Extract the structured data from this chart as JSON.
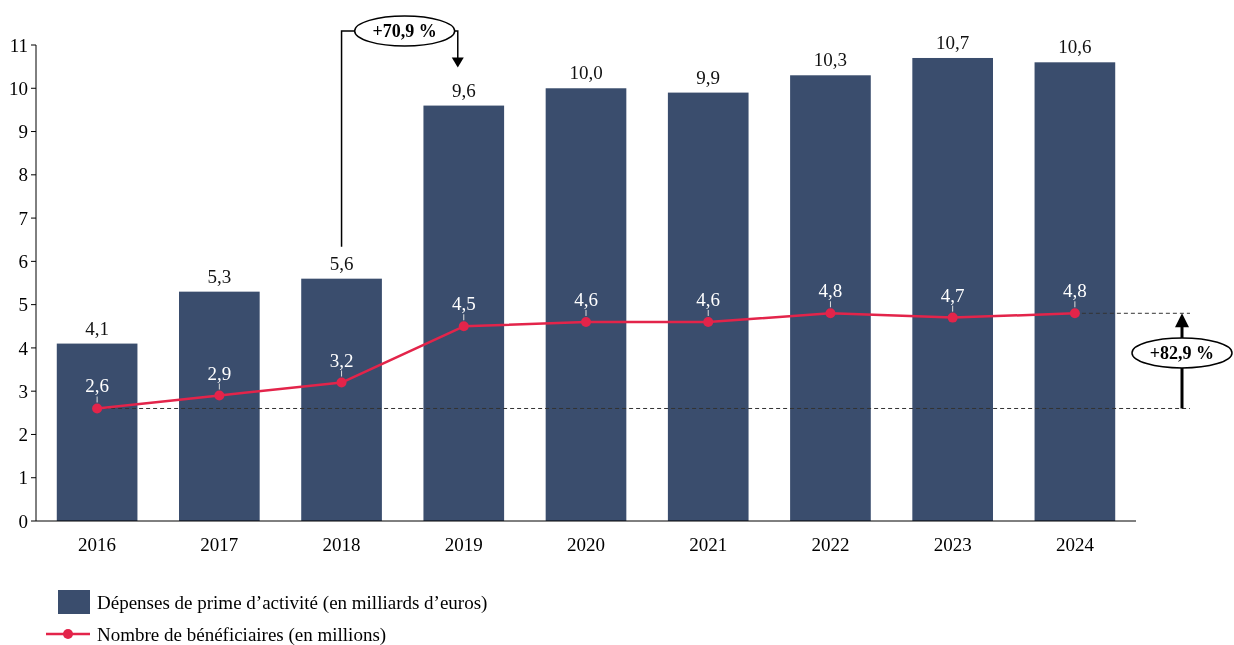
{
  "chart_data": {
    "type": "bar",
    "categories": [
      "2016",
      "2017",
      "2018",
      "2019",
      "2020",
      "2021",
      "2022",
      "2023",
      "2024"
    ],
    "series": [
      {
        "name": "Dépenses de prime d’activité (en milliards d’euros)",
        "color": "#3a4d6d",
        "values": [
          4.1,
          5.3,
          5.6,
          9.6,
          10.0,
          9.9,
          10.3,
          10.7,
          10.6
        ],
        "value_labels": [
          "4,1",
          "5,3",
          "5,6",
          "9,6",
          "10,0",
          "9,9",
          "10,3",
          "10,7",
          "10,6"
        ]
      },
      {
        "name": "Nombre de bénéficiaires (en millions)",
        "type": "line",
        "color": "#e3244a",
        "values": [
          2.6,
          2.9,
          3.2,
          4.5,
          4.6,
          4.6,
          4.8,
          4.7,
          4.8
        ],
        "value_labels": [
          "2,6",
          "2,9",
          "3,2",
          "4,5",
          "4,6",
          "4,6",
          "4,8",
          "4,7",
          "4,8"
        ]
      }
    ],
    "ylim": [
      0,
      11
    ],
    "yticks": [
      0,
      1,
      2,
      3,
      4,
      5,
      6,
      7,
      8,
      9,
      10,
      11
    ],
    "grid": false,
    "legend": "bottom left",
    "marker": "circle",
    "line_style": "solid",
    "ref_lines": [
      {
        "axis": "y",
        "value": 2.6,
        "label": null,
        "color": "#333333",
        "line_style": "dashed"
      },
      {
        "axis": "y",
        "value": 4.8,
        "label": null,
        "color": "#333333",
        "line_style": "dashed"
      }
    ],
    "annotations": [
      "+70,9 %",
      "+82,9 %"
    ]
  }
}
